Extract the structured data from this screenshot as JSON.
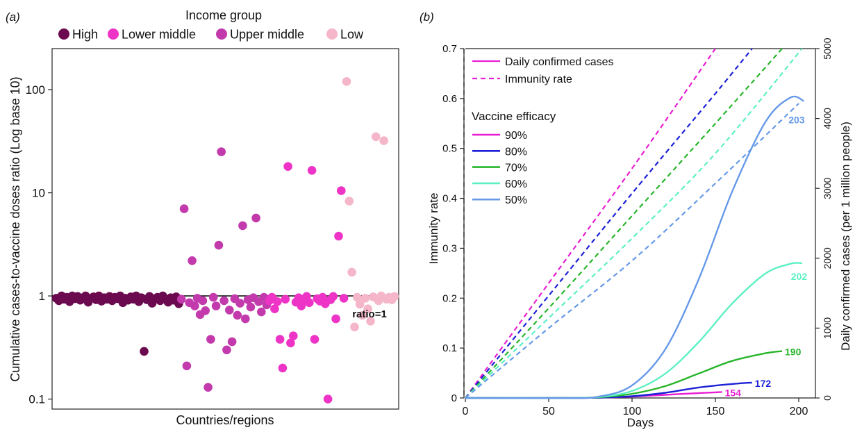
{
  "panel_a": {
    "panel_label": "(a)",
    "legend": {
      "title": "Income group",
      "items": [
        {
          "label": "High",
          "color": "#6b0a4e"
        },
        {
          "label": "Lower middle",
          "color": "#ee34c6"
        },
        {
          "label": "Upper middle",
          "color": "#c23aac"
        },
        {
          "label": "Low",
          "color": "#f4b6c8"
        }
      ]
    },
    "reference_line_label": "ratio=1",
    "chart_data": {
      "type": "scatter",
      "xlabel": "Countries/regions",
      "ylabel": "Cumulative cases-to-vaccine doses ratio (Log base 10)",
      "y_scale": "log10",
      "ylim": [
        0.08,
        250
      ],
      "y_ticks": [
        {
          "value": 0.1,
          "label": "0.1"
        },
        {
          "value": 1,
          "label": "1"
        },
        {
          "value": 10,
          "label": "10"
        },
        {
          "value": 100,
          "label": "100"
        }
      ],
      "reference_line": 1,
      "series": [
        {
          "name": "High",
          "color": "#6b0a4e",
          "points": [
            {
              "x": 1,
              "y": 0.95
            },
            {
              "x": 2,
              "y": 0.9
            },
            {
              "x": 3,
              "y": 1.0
            },
            {
              "x": 4,
              "y": 0.93
            },
            {
              "x": 5,
              "y": 0.97
            },
            {
              "x": 6,
              "y": 0.88
            },
            {
              "x": 7,
              "y": 1.0
            },
            {
              "x": 8,
              "y": 0.94
            },
            {
              "x": 9,
              "y": 0.99
            },
            {
              "x": 10,
              "y": 0.91
            },
            {
              "x": 11,
              "y": 0.96
            },
            {
              "x": 12,
              "y": 1.0
            },
            {
              "x": 13,
              "y": 0.87
            },
            {
              "x": 14,
              "y": 0.95
            },
            {
              "x": 15,
              "y": 0.98
            },
            {
              "x": 16,
              "y": 0.92
            },
            {
              "x": 17,
              "y": 1.0
            },
            {
              "x": 18,
              "y": 0.89
            },
            {
              "x": 19,
              "y": 0.96
            },
            {
              "x": 20,
              "y": 0.93
            },
            {
              "x": 21,
              "y": 0.99
            },
            {
              "x": 22,
              "y": 0.9
            },
            {
              "x": 23,
              "y": 0.97
            },
            {
              "x": 24,
              "y": 0.94
            },
            {
              "x": 25,
              "y": 1.0
            },
            {
              "x": 26,
              "y": 0.86
            },
            {
              "x": 27,
              "y": 0.95
            },
            {
              "x": 28,
              "y": 0.91
            },
            {
              "x": 29,
              "y": 0.98
            },
            {
              "x": 30,
              "y": 0.93
            },
            {
              "x": 31,
              "y": 1.0
            },
            {
              "x": 32,
              "y": 0.88
            },
            {
              "x": 33,
              "y": 0.96
            },
            {
              "x": 34,
              "y": 0.29
            },
            {
              "x": 35,
              "y": 0.92
            },
            {
              "x": 36,
              "y": 0.99
            },
            {
              "x": 37,
              "y": 0.85
            },
            {
              "x": 38,
              "y": 0.94
            },
            {
              "x": 39,
              "y": 0.97
            },
            {
              "x": 40,
              "y": 0.9
            },
            {
              "x": 41,
              "y": 1.0
            },
            {
              "x": 42,
              "y": 0.93
            },
            {
              "x": 43,
              "y": 0.87
            },
            {
              "x": 44,
              "y": 0.96
            },
            {
              "x": 45,
              "y": 0.91
            },
            {
              "x": 46,
              "y": 0.98
            },
            {
              "x": 47,
              "y": 0.84
            }
          ]
        },
        {
          "name": "Upper middle",
          "color": "#c23aac",
          "points": [
            {
              "x": 48,
              "y": 0.93
            },
            {
              "x": 49,
              "y": 7.0
            },
            {
              "x": 50,
              "y": 0.21
            },
            {
              "x": 51,
              "y": 0.86
            },
            {
              "x": 52,
              "y": 2.2
            },
            {
              "x": 53,
              "y": 0.8
            },
            {
              "x": 54,
              "y": 0.95
            },
            {
              "x": 55,
              "y": 0.66
            },
            {
              "x": 56,
              "y": 0.9
            },
            {
              "x": 57,
              "y": 0.72
            },
            {
              "x": 58,
              "y": 0.13
            },
            {
              "x": 59,
              "y": 0.38
            },
            {
              "x": 60,
              "y": 0.97
            },
            {
              "x": 61,
              "y": 0.8
            },
            {
              "x": 62,
              "y": 3.1
            },
            {
              "x": 63,
              "y": 25.0
            },
            {
              "x": 64,
              "y": 0.9
            },
            {
              "x": 65,
              "y": 0.3
            },
            {
              "x": 66,
              "y": 0.73
            },
            {
              "x": 67,
              "y": 0.36
            },
            {
              "x": 68,
              "y": 0.94
            },
            {
              "x": 69,
              "y": 0.65
            },
            {
              "x": 70,
              "y": 0.85
            },
            {
              "x": 71,
              "y": 4.8
            },
            {
              "x": 72,
              "y": 0.6
            },
            {
              "x": 73,
              "y": 0.92
            },
            {
              "x": 74,
              "y": 0.78
            },
            {
              "x": 75,
              "y": 0.96
            },
            {
              "x": 76,
              "y": 5.7
            },
            {
              "x": 77,
              "y": 0.88
            },
            {
              "x": 78,
              "y": 0.7
            },
            {
              "x": 79,
              "y": 0.97
            },
            {
              "x": 80,
              "y": 0.82
            }
          ]
        },
        {
          "name": "Lower middle",
          "color": "#ee34c6",
          "points": [
            {
              "x": 81,
              "y": 0.9
            },
            {
              "x": 82,
              "y": 0.97
            },
            {
              "x": 83,
              "y": 0.75
            },
            {
              "x": 84,
              "y": 0.88
            },
            {
              "x": 85,
              "y": 0.38
            },
            {
              "x": 86,
              "y": 0.2
            },
            {
              "x": 87,
              "y": 0.93
            },
            {
              "x": 88,
              "y": 18.0
            },
            {
              "x": 89,
              "y": 0.35
            },
            {
              "x": 90,
              "y": 0.41
            },
            {
              "x": 91,
              "y": 0.87
            },
            {
              "x": 92,
              "y": 0.96
            },
            {
              "x": 93,
              "y": 0.8
            },
            {
              "x": 94,
              "y": 0.92
            },
            {
              "x": 95,
              "y": 0.99
            },
            {
              "x": 96,
              "y": 0.86
            },
            {
              "x": 97,
              "y": 16.5
            },
            {
              "x": 98,
              "y": 0.38
            },
            {
              "x": 99,
              "y": 0.94
            },
            {
              "x": 100,
              "y": 0.89
            },
            {
              "x": 101,
              "y": 0.97
            },
            {
              "x": 102,
              "y": 0.84
            },
            {
              "x": 103,
              "y": 0.1
            },
            {
              "x": 104,
              "y": 0.92
            },
            {
              "x": 105,
              "y": 0.99
            },
            {
              "x": 106,
              "y": 0.6
            },
            {
              "x": 107,
              "y": 3.8
            },
            {
              "x": 108,
              "y": 10.5
            },
            {
              "x": 109,
              "y": 0.95
            }
          ]
        },
        {
          "name": "Low",
          "color": "#f4b6c8",
          "points": [
            {
              "x": 110,
              "y": 120.0
            },
            {
              "x": 111,
              "y": 8.3
            },
            {
              "x": 112,
              "y": 1.7
            },
            {
              "x": 113,
              "y": 0.5
            },
            {
              "x": 114,
              "y": 0.97
            },
            {
              "x": 115,
              "y": 0.83
            },
            {
              "x": 116,
              "y": 0.65
            },
            {
              "x": 117,
              "y": 0.95
            },
            {
              "x": 118,
              "y": 0.75
            },
            {
              "x": 119,
              "y": 0.57
            },
            {
              "x": 120,
              "y": 0.98
            },
            {
              "x": 121,
              "y": 35.0
            },
            {
              "x": 122,
              "y": 0.9
            },
            {
              "x": 123,
              "y": 1.0
            },
            {
              "x": 124,
              "y": 32.0
            },
            {
              "x": 125,
              "y": 0.93
            },
            {
              "x": 126,
              "y": 0.97
            },
            {
              "x": 127,
              "y": 0.92
            },
            {
              "x": 128,
              "y": 0.99
            }
          ]
        }
      ]
    }
  },
  "panel_b": {
    "panel_label": "(b)",
    "legend": {
      "line_items": [
        {
          "label": "Daily confirmed cases",
          "style": "solid",
          "color": "#e81ed2"
        },
        {
          "label": "Immunity rate",
          "style": "dashed",
          "color": "#e81ed2"
        }
      ],
      "efficacy_title": "Vaccine efficacy",
      "efficacy_items": [
        {
          "label": "90%",
          "color": "#e81ed2"
        },
        {
          "label": "80%",
          "color": "#1b20d6"
        },
        {
          "label": "70%",
          "color": "#27b52a"
        },
        {
          "label": "60%",
          "color": "#5cf0c4"
        },
        {
          "label": "50%",
          "color": "#6699e8"
        }
      ]
    },
    "chart_data": {
      "type": "line",
      "xlabel": "Days",
      "ylabel_left": "Immunity rate",
      "ylabel_right": "Daily confirmed cases (per 1 million people)",
      "xlim": [
        0,
        210
      ],
      "ylim_left": [
        0,
        0.7
      ],
      "ylim_right": [
        0,
        5000
      ],
      "x_ticks": [
        "0",
        "50",
        "100",
        "150",
        "200"
      ],
      "y_left_ticks": [
        "0",
        "0.1",
        "0.2",
        "0.3",
        "0.4",
        "0.5",
        "0.6",
        "0.7"
      ],
      "y_right_ticks": [
        "0",
        "1000",
        "2000",
        "3000",
        "4000",
        "5000"
      ],
      "vertical_reference_line_x": 0,
      "immunity_series": [
        {
          "name": "90%",
          "color": "#e81ed2",
          "x": [
            0,
            50,
            100,
            150
          ],
          "y": [
            0.0,
            0.23,
            0.46,
            0.7
          ]
        },
        {
          "name": "80%",
          "color": "#1b20d6",
          "x": [
            0,
            50,
            100,
            150,
            172
          ],
          "y": [
            0.0,
            0.205,
            0.41,
            0.61,
            0.7
          ]
        },
        {
          "name": "70%",
          "color": "#27b52a",
          "x": [
            0,
            50,
            100,
            150,
            190
          ],
          "y": [
            0.0,
            0.18,
            0.365,
            0.55,
            0.7
          ]
        },
        {
          "name": "60%",
          "color": "#5cf0c4",
          "x": [
            0,
            50,
            100,
            150,
            202
          ],
          "y": [
            0.0,
            0.16,
            0.32,
            0.49,
            0.7
          ]
        },
        {
          "name": "50%",
          "color": "#6699e8",
          "x": [
            0,
            50,
            100,
            150,
            200
          ],
          "y": [
            0.0,
            0.14,
            0.275,
            0.43,
            0.59
          ]
        }
      ],
      "cases_series": [
        {
          "name": "90%",
          "color": "#e81ed2",
          "end_label": "154",
          "x": [
            0,
            60,
            80,
            100,
            120,
            140,
            154
          ],
          "y": [
            0,
            0,
            5,
            20,
            45,
            70,
            85
          ]
        },
        {
          "name": "80%",
          "color": "#1b20d6",
          "end_label": "172",
          "x": [
            0,
            60,
            80,
            100,
            120,
            140,
            160,
            172
          ],
          "y": [
            0,
            0,
            5,
            25,
            75,
            150,
            200,
            220
          ]
        },
        {
          "name": "70%",
          "color": "#27b52a",
          "end_label": "190",
          "x": [
            0,
            60,
            80,
            100,
            120,
            140,
            160,
            180,
            190
          ],
          "y": [
            0,
            0,
            10,
            60,
            170,
            350,
            530,
            640,
            670
          ]
        },
        {
          "name": "60%",
          "color": "#5cf0c4",
          "end_label": "202",
          "x": [
            0,
            60,
            80,
            100,
            120,
            140,
            160,
            180,
            195,
            202
          ],
          "y": [
            0,
            0,
            15,
            100,
            350,
            800,
            1350,
            1780,
            1920,
            1930
          ]
        },
        {
          "name": "50%",
          "color": "#6699e8",
          "end_label": "203",
          "x": [
            0,
            60,
            80,
            100,
            120,
            140,
            160,
            180,
            195,
            203
          ],
          "y": [
            0,
            0,
            20,
            180,
            700,
            1700,
            2950,
            3950,
            4300,
            4250
          ]
        }
      ]
    }
  }
}
